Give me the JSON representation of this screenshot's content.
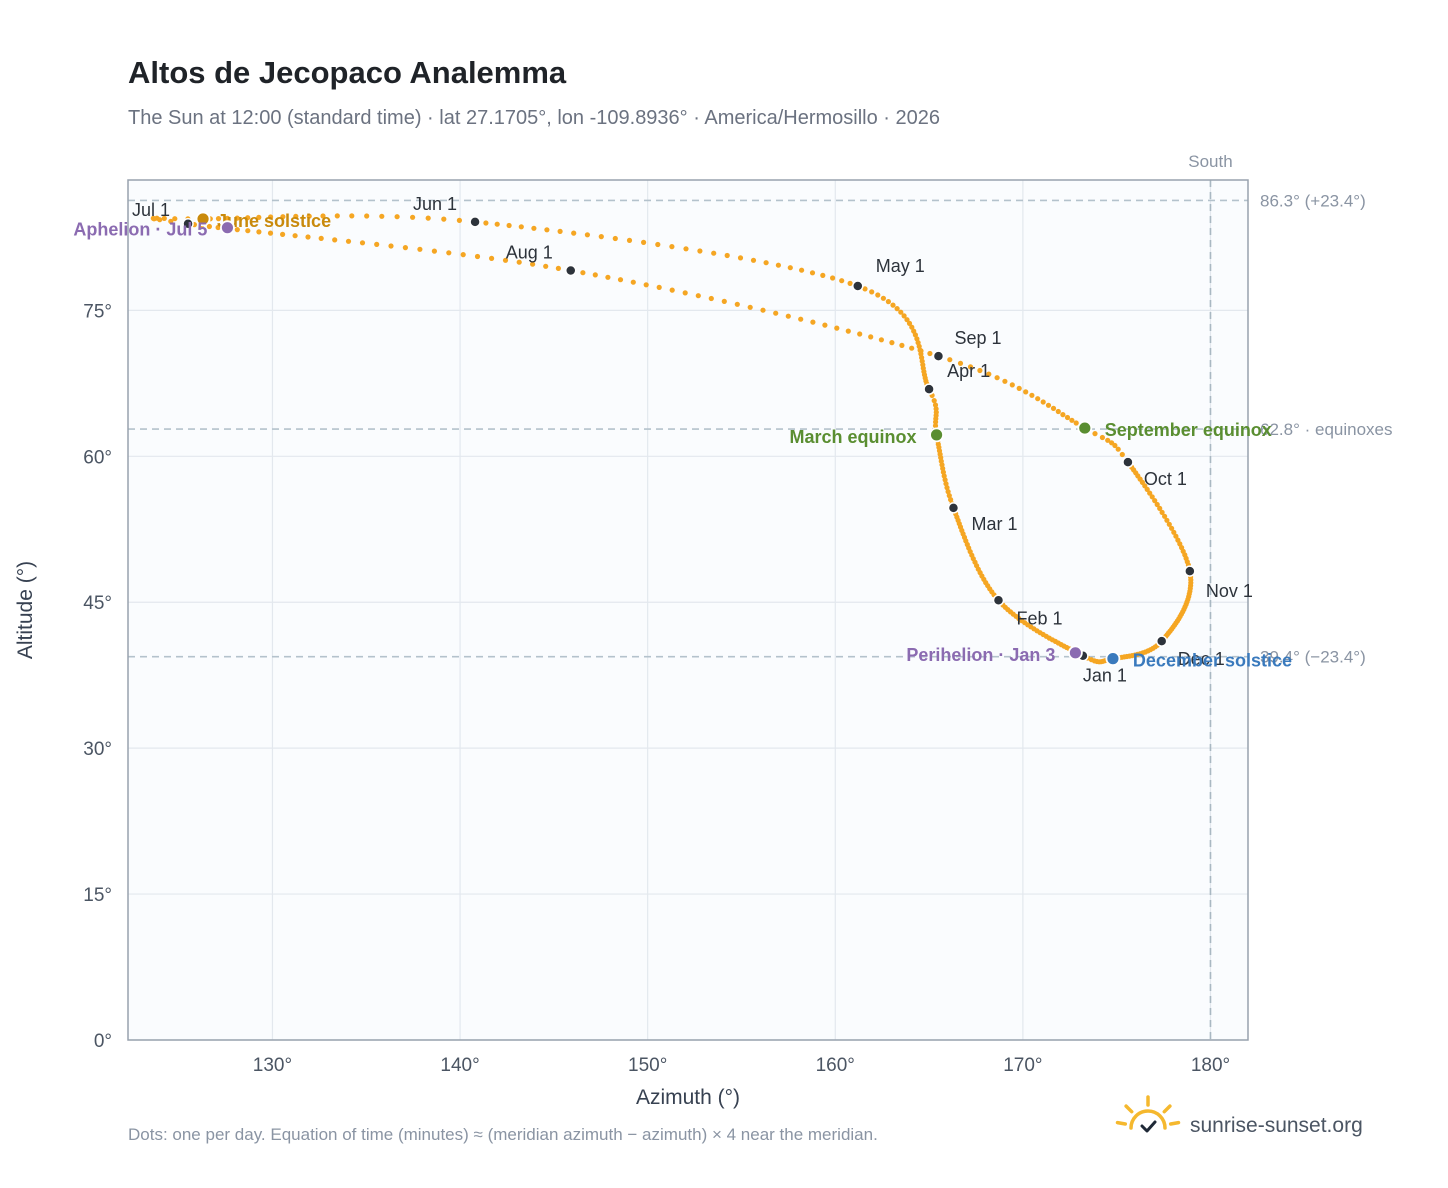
{
  "chart_data": {
    "type": "scatter",
    "title": "Altos de Jecopaco Analemma",
    "subtitle": "The Sun at 12:00 (standard time) · lat 27.1705°, lon -109.8936° · America/Hermosillo · 2026",
    "xlabel": "Azimuth (°)",
    "ylabel": "Altitude (°)",
    "xlim": [
      122.3,
      182.0
    ],
    "ylim": [
      0,
      88.4
    ],
    "x_ticks": [
      {
        "value": 130,
        "label": "130°"
      },
      {
        "value": 140,
        "label": "140°"
      },
      {
        "value": 150,
        "label": "150°"
      },
      {
        "value": 160,
        "label": "160°"
      },
      {
        "value": 170,
        "label": "170°"
      },
      {
        "value": 180,
        "label": "180°"
      }
    ],
    "y_ticks": [
      {
        "value": 0,
        "label": "0°"
      },
      {
        "value": 15,
        "label": "15°"
      },
      {
        "value": 30,
        "label": "30°"
      },
      {
        "value": 45,
        "label": "45°"
      },
      {
        "value": 60,
        "label": "60°"
      },
      {
        "value": 75,
        "label": "75°"
      }
    ],
    "grid": true,
    "south_line": {
      "azimuth": 180,
      "label": "South"
    },
    "reference_lines": [
      {
        "altitude": 86.3,
        "label": "86.3° (+23.4°)"
      },
      {
        "altitude": 62.8,
        "label": "62.8° · equinoxes"
      },
      {
        "altitude": 39.4,
        "label": "39.4° (−23.4°)"
      }
    ],
    "series_color": "#f5a623",
    "marker_color": "#2d333b",
    "month_points": [
      {
        "label": "Jan 1",
        "x": 173.2,
        "y": 39.5
      },
      {
        "label": "Feb 1",
        "x": 168.7,
        "y": 45.2
      },
      {
        "label": "Mar 1",
        "x": 166.3,
        "y": 54.7
      },
      {
        "label": "Apr 1",
        "x": 165.0,
        "y": 66.9
      },
      {
        "label": "May 1",
        "x": 161.2,
        "y": 77.5
      },
      {
        "label": "Jun 1",
        "x": 140.8,
        "y": 84.1
      },
      {
        "label": "Jul 1",
        "x": 125.5,
        "y": 83.9
      },
      {
        "label": "Aug 1",
        "x": 145.9,
        "y": 79.1
      },
      {
        "label": "Sep 1",
        "x": 165.5,
        "y": 70.3
      },
      {
        "label": "Oct 1",
        "x": 175.6,
        "y": 59.4
      },
      {
        "label": "Nov 1",
        "x": 178.9,
        "y": 48.2
      },
      {
        "label": "Dec 1",
        "x": 177.4,
        "y": 41.0
      }
    ],
    "events": [
      {
        "label": "June solstice",
        "x": 126.3,
        "y": 84.4,
        "color": "#c98a0c"
      },
      {
        "label": "Aphelion · Jul 5",
        "x": 127.6,
        "y": 83.5,
        "color": "#8b6bb1"
      },
      {
        "label": "March equinox",
        "x": 165.4,
        "y": 62.2,
        "color": "#5a8e31"
      },
      {
        "label": "September equinox",
        "x": 173.3,
        "y": 62.9,
        "color": "#5a8e31"
      },
      {
        "label": "Perihelion · Jan 3",
        "x": 172.8,
        "y": 39.8,
        "color": "#8b6bb1"
      },
      {
        "label": "December solstice",
        "x": 174.8,
        "y": 39.2,
        "color": "#3a7abd"
      }
    ]
  },
  "footer": {
    "note": "Dots: one per day. Equation of time (minutes) ≈ (meridian azimuth − azimuth) × 4 near the meridian.",
    "brand": "sunrise-sunset.org"
  },
  "logo": {
    "icon": "sun-check-icon",
    "color": "#f5b82e",
    "check_color": "#1f2937"
  }
}
